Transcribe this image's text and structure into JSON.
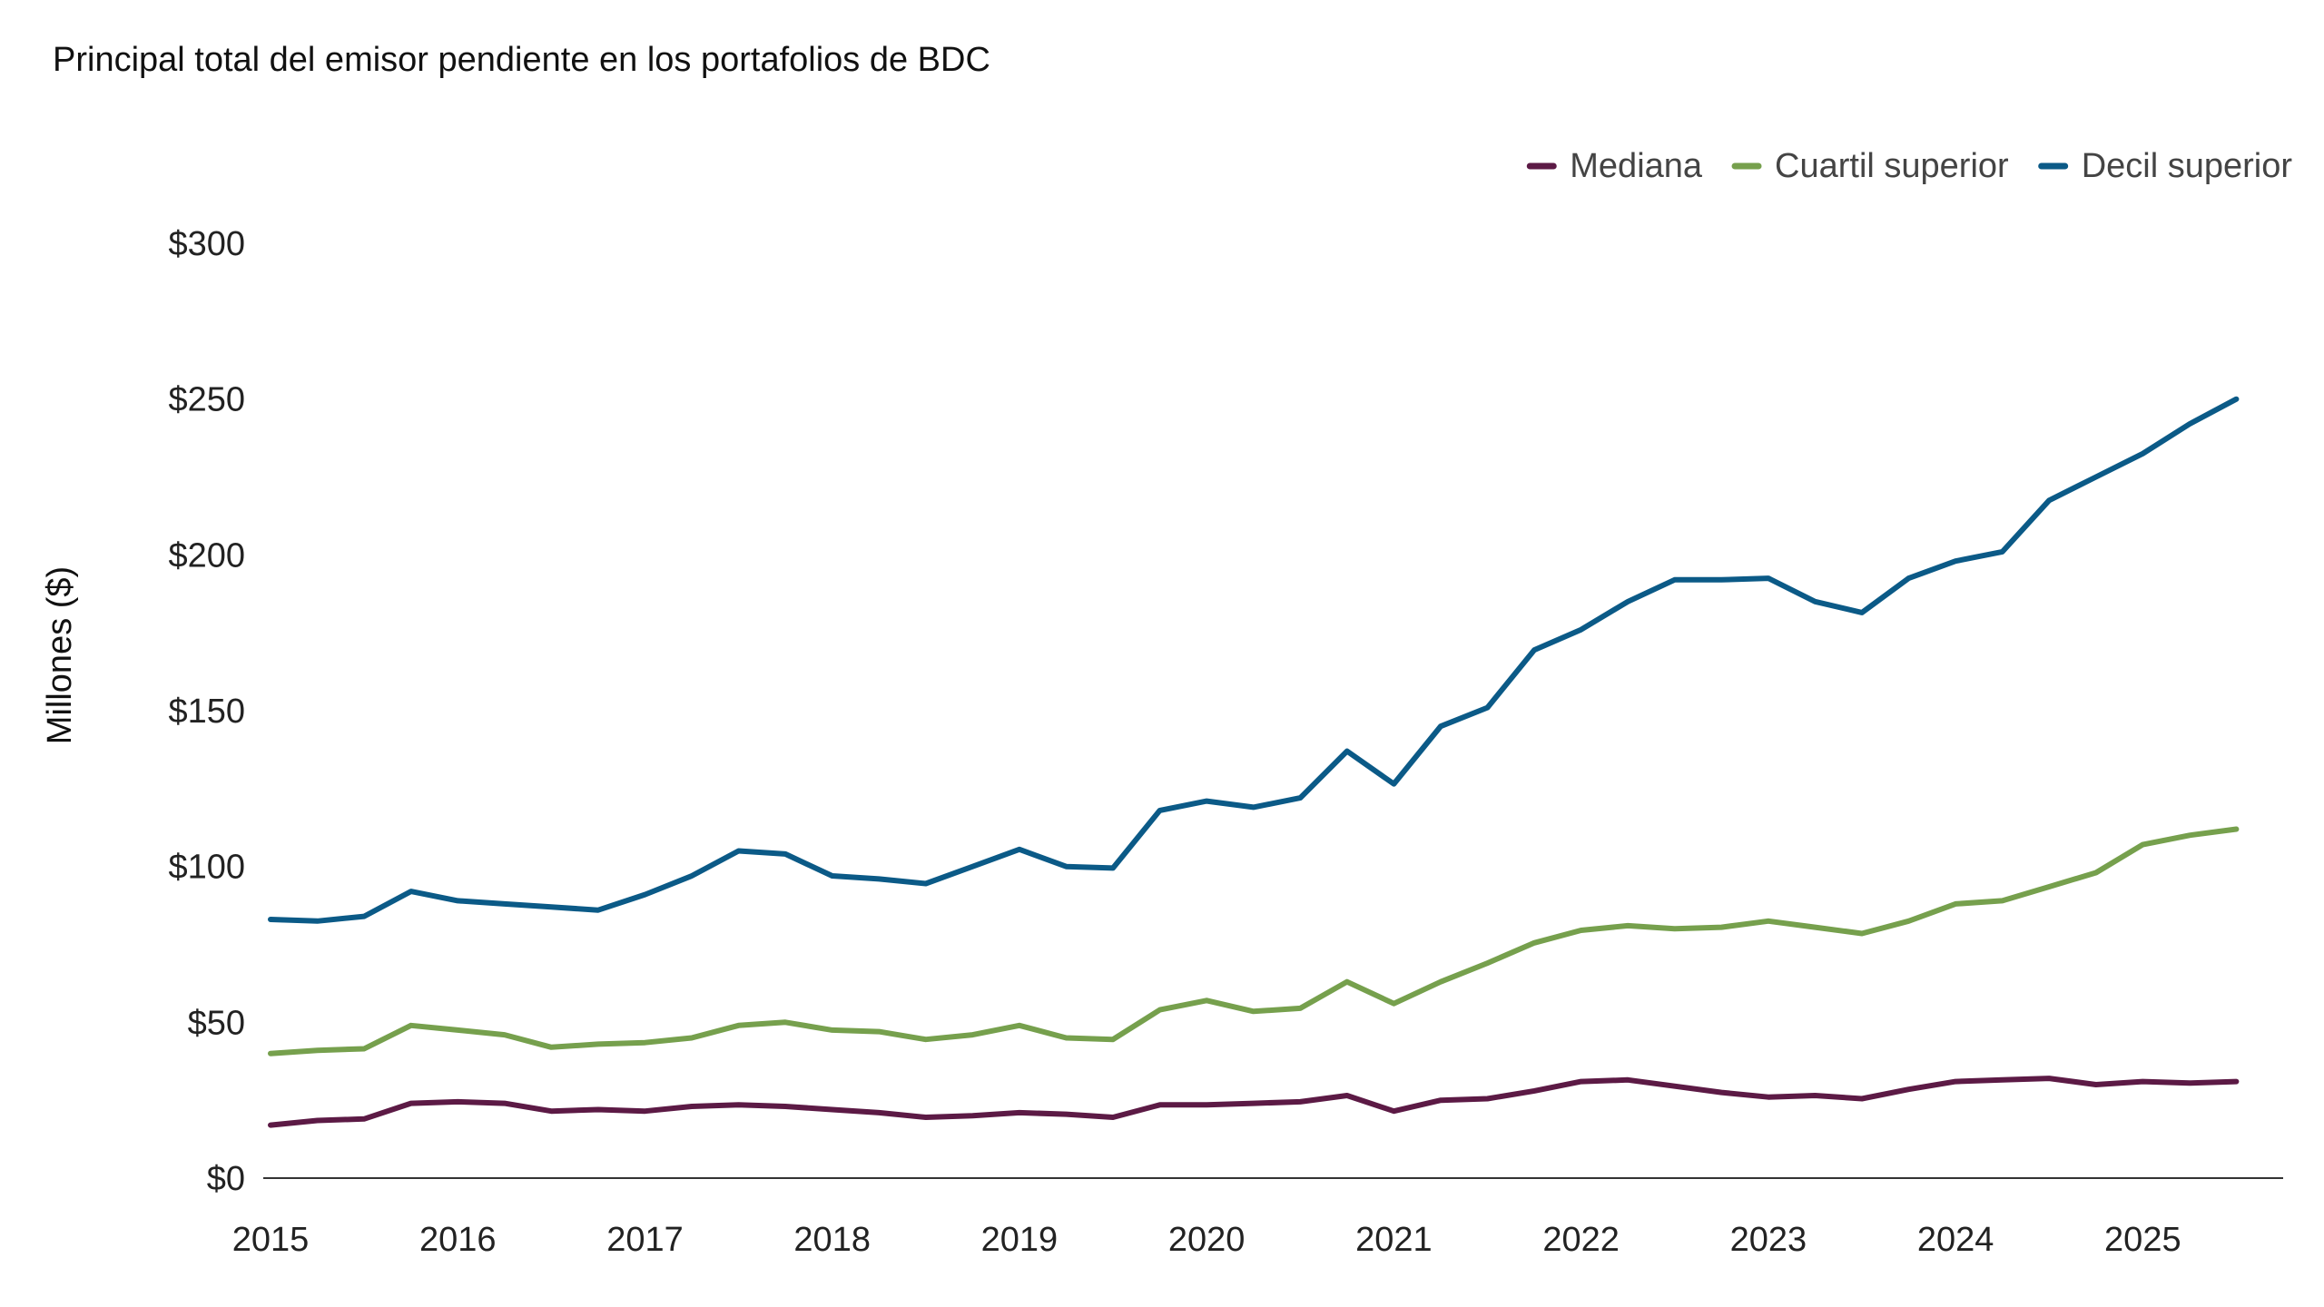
{
  "chart_data": {
    "type": "line",
    "title": "Principal total del emisor pendiente en los portafolios de BDC",
    "xlabel": "",
    "ylabel": "Millones ($)",
    "ylim": [
      0,
      300
    ],
    "xlim": [
      2015,
      2025.75
    ],
    "y_ticks": [
      {
        "value": 0,
        "label": "$0"
      },
      {
        "value": 50,
        "label": "$50"
      },
      {
        "value": 100,
        "label": "$100"
      },
      {
        "value": 150,
        "label": "$150"
      },
      {
        "value": 200,
        "label": "$200"
      },
      {
        "value": 250,
        "label": "$250"
      },
      {
        "value": 300,
        "label": "$300"
      }
    ],
    "x_ticks": [
      {
        "value": 2015,
        "label": "2015"
      },
      {
        "value": 2016,
        "label": "2016"
      },
      {
        "value": 2017,
        "label": "2017"
      },
      {
        "value": 2018,
        "label": "2018"
      },
      {
        "value": 2019,
        "label": "2019"
      },
      {
        "value": 2020,
        "label": "2020"
      },
      {
        "value": 2021,
        "label": "2021"
      },
      {
        "value": 2022,
        "label": "2022"
      },
      {
        "value": 2023,
        "label": "2023"
      },
      {
        "value": 2024,
        "label": "2024"
      },
      {
        "value": 2025,
        "label": "2025"
      }
    ],
    "grid": false,
    "legend_position": "top-right",
    "x": [
      2015.0,
      2015.25,
      2015.5,
      2015.75,
      2016.0,
      2016.25,
      2016.5,
      2016.75,
      2017.0,
      2017.25,
      2017.5,
      2017.75,
      2018.0,
      2018.25,
      2018.5,
      2018.75,
      2019.0,
      2019.25,
      2019.5,
      2019.75,
      2020.0,
      2020.25,
      2020.5,
      2020.75,
      2021.0,
      2021.25,
      2021.5,
      2021.75,
      2022.0,
      2022.25,
      2022.5,
      2022.75,
      2023.0,
      2023.25,
      2023.5,
      2023.75,
      2024.0,
      2024.25,
      2024.5,
      2024.75,
      2025.0,
      2025.25,
      2025.5
    ],
    "series": [
      {
        "name": "Mediana",
        "color": "#5c1a45",
        "values": [
          17,
          18.5,
          19,
          24,
          24.5,
          24,
          21.5,
          22,
          21.5,
          23,
          23.5,
          23,
          22,
          21,
          19.5,
          20,
          21,
          20.5,
          19.5,
          23.5,
          23.5,
          24,
          24.5,
          26.5,
          21.5,
          25,
          25.5,
          28,
          31,
          31.5,
          29.5,
          27.5,
          26,
          26.5,
          25.5,
          28.5,
          31,
          31.5,
          32,
          30,
          31,
          30.5,
          31
        ]
      },
      {
        "name": "Cuartil superior",
        "color": "#76a04d",
        "values": [
          40,
          41,
          41.5,
          49,
          47.5,
          46,
          42,
          43,
          43.5,
          45,
          49,
          50,
          47.5,
          47,
          44.5,
          46,
          49,
          45,
          44.5,
          54,
          57,
          53.5,
          54.5,
          63,
          56,
          63,
          69,
          75.5,
          79.5,
          81,
          80,
          80.5,
          82.5,
          80.5,
          78.5,
          82.5,
          88,
          89,
          93.5,
          98,
          107,
          110,
          112
        ]
      },
      {
        "name": "Decil superior",
        "color": "#0b5a87",
        "values": [
          83,
          82.5,
          84,
          92,
          89,
          88,
          87,
          86,
          91,
          97,
          105,
          104,
          97,
          96,
          94.5,
          100,
          105.5,
          100,
          99.5,
          118,
          121,
          119,
          122,
          137,
          126.5,
          145,
          151,
          169.5,
          176,
          185,
          192,
          192,
          192.5,
          185,
          181.5,
          192.5,
          198,
          201,
          217.5,
          225,
          232.5,
          242,
          250
        ]
      }
    ]
  }
}
